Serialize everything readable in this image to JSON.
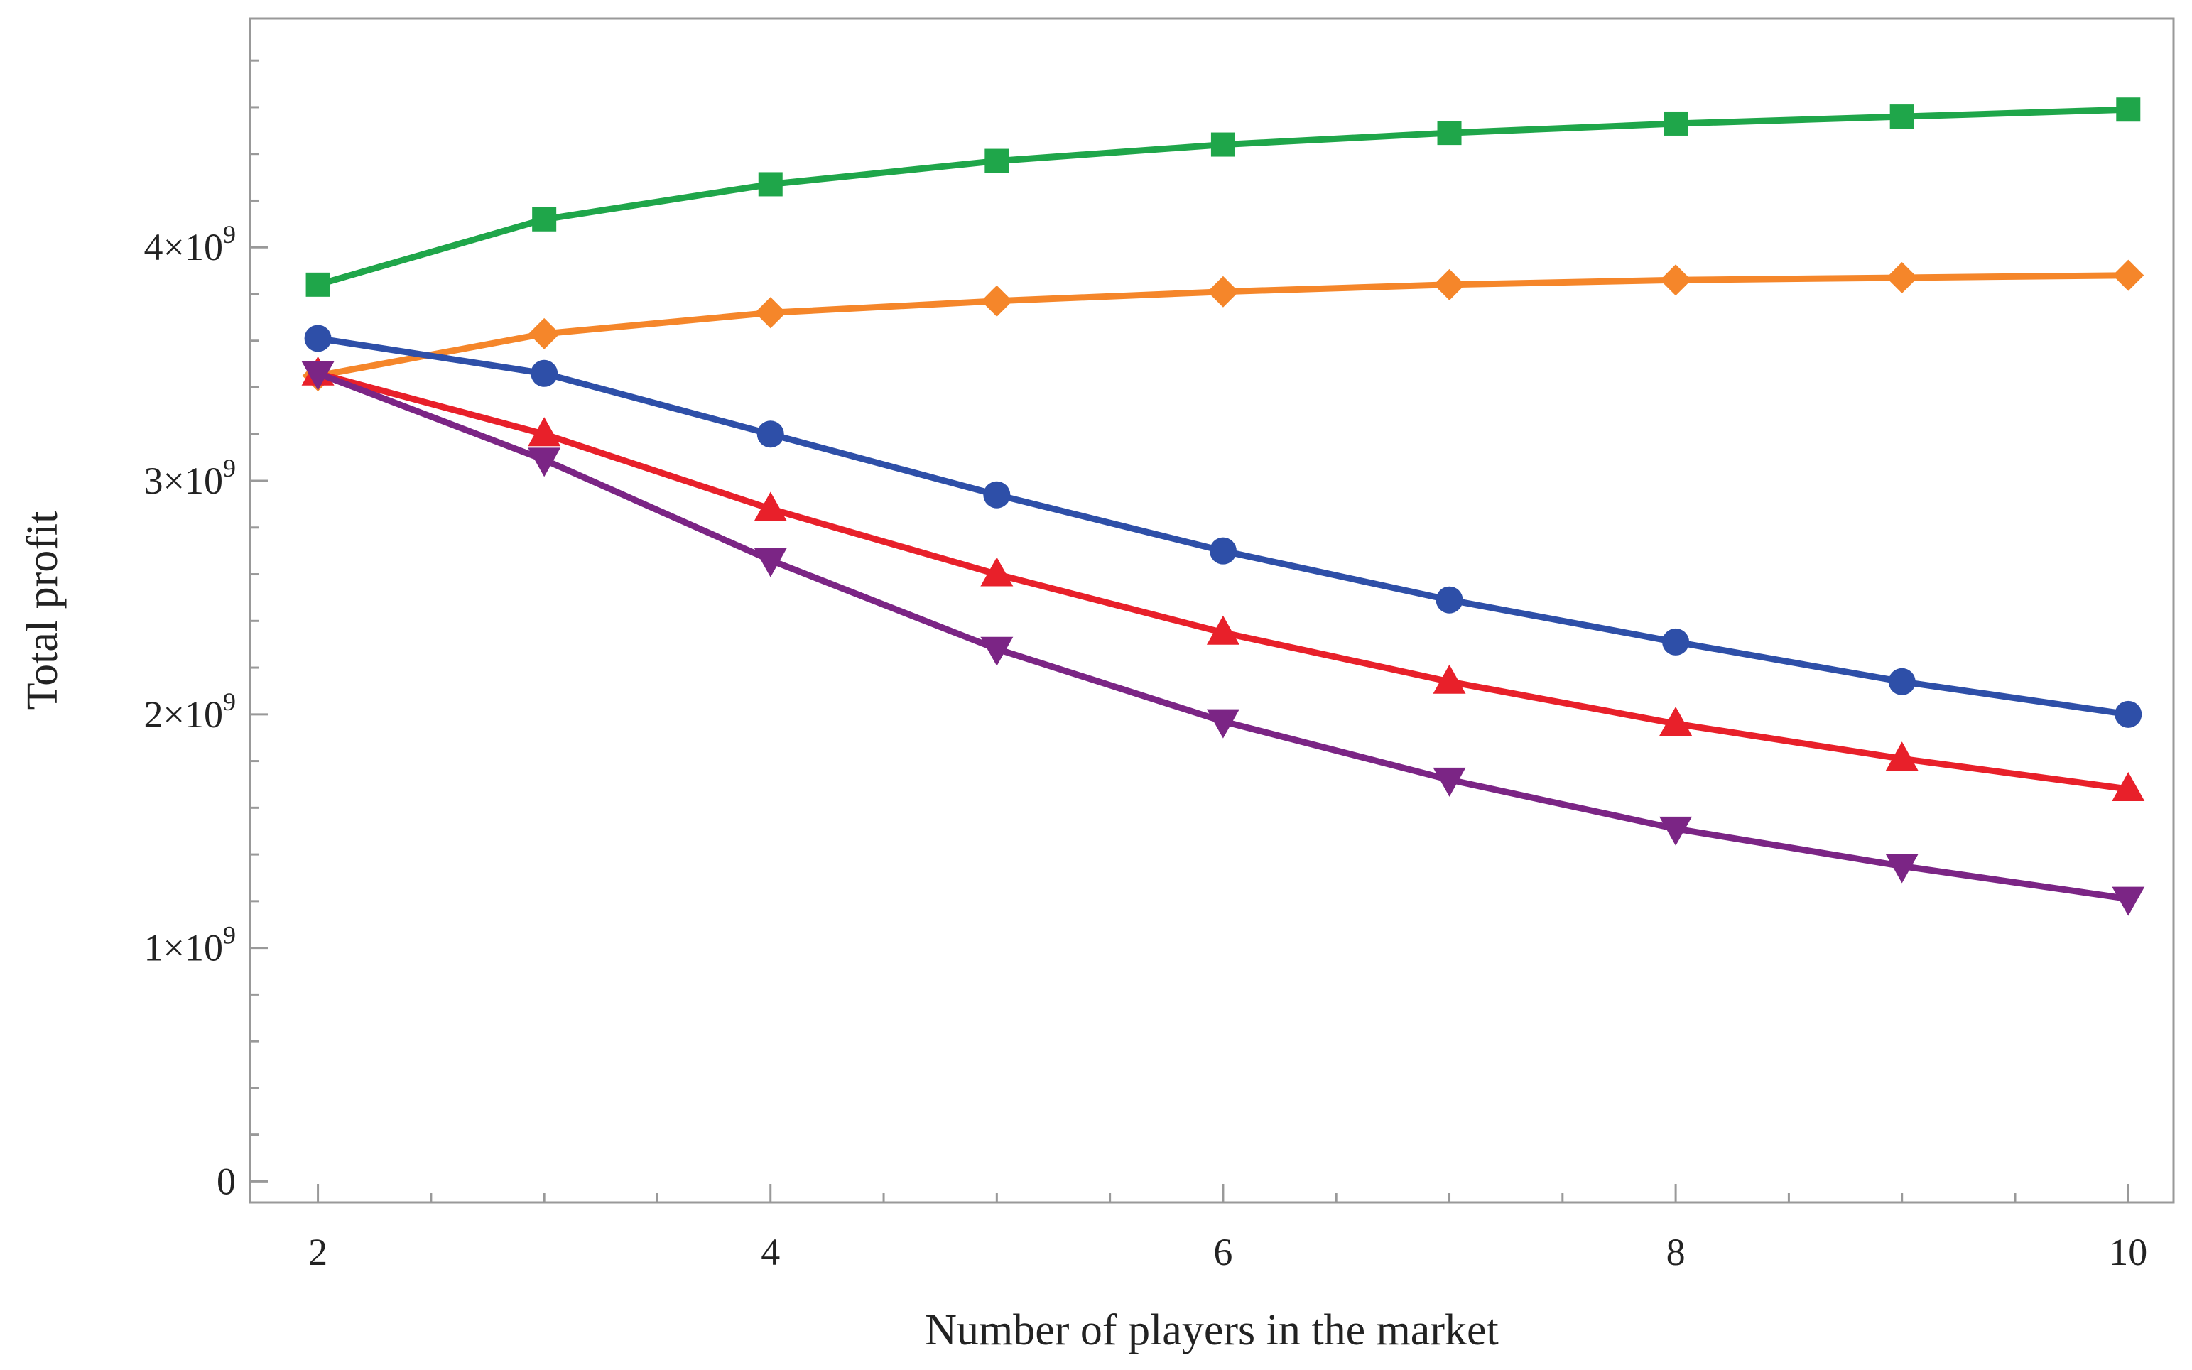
{
  "chart_data": {
    "type": "line",
    "title": "",
    "xlabel": "Number of players in the market",
    "ylabel": "Total profit",
    "x": [
      2,
      3,
      4,
      5,
      6,
      7,
      8,
      9,
      10
    ],
    "xlim": [
      1.7,
      10.2
    ],
    "ylim": [
      -0.09,
      4.98
    ],
    "y_unit_power": 9,
    "x_ticks": [
      {
        "value": 2,
        "label": "2"
      },
      {
        "value": 4,
        "label": "4"
      },
      {
        "value": 6,
        "label": "6"
      },
      {
        "value": 8,
        "label": "8"
      },
      {
        "value": 10,
        "label": "10"
      }
    ],
    "y_ticks": [
      {
        "value": 0,
        "mant": "0",
        "exp": ""
      },
      {
        "value": 1,
        "mant": "1×10",
        "exp": "9"
      },
      {
        "value": 2,
        "mant": "2×10",
        "exp": "9"
      },
      {
        "value": 3,
        "mant": "3×10",
        "exp": "9"
      },
      {
        "value": 4,
        "mant": "4×10",
        "exp": "9"
      }
    ],
    "grid": false,
    "series": [
      {
        "color": "#1fa64a",
        "marker": "square",
        "values": [
          3.84,
          4.12,
          4.27,
          4.37,
          4.44,
          4.49,
          4.53,
          4.56,
          4.59
        ]
      },
      {
        "color": "#f5862a",
        "marker": "diamond",
        "values": [
          3.45,
          3.63,
          3.72,
          3.77,
          3.81,
          3.84,
          3.86,
          3.87,
          3.88
        ]
      },
      {
        "color": "#2e4fa8",
        "marker": "circle",
        "values": [
          3.61,
          3.46,
          3.2,
          2.94,
          2.7,
          2.49,
          2.31,
          2.14,
          2.0
        ]
      },
      {
        "color": "#e8202a",
        "marker": "triangle-up",
        "values": [
          3.46,
          3.2,
          2.88,
          2.6,
          2.35,
          2.14,
          1.96,
          1.81,
          1.68
        ]
      },
      {
        "color": "#7b2585",
        "marker": "triangle-down",
        "values": [
          3.46,
          3.09,
          2.66,
          2.28,
          1.97,
          1.72,
          1.51,
          1.35,
          1.21
        ]
      }
    ]
  }
}
